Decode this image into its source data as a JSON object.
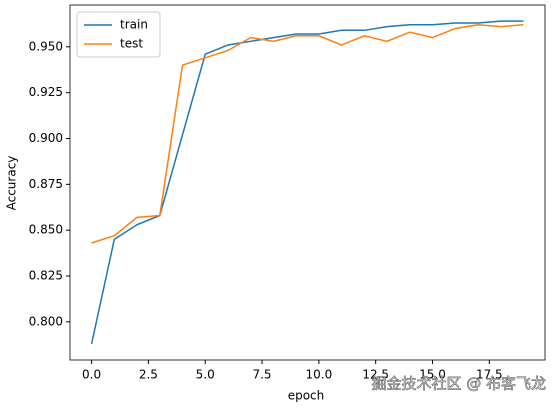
{
  "chart_data": {
    "type": "line",
    "xlabel": "epoch",
    "ylabel": "Accuracy",
    "x": [
      0,
      1,
      2,
      3,
      4,
      5,
      6,
      7,
      8,
      9,
      10,
      11,
      12,
      13,
      14,
      15,
      16,
      17,
      18,
      19
    ],
    "series": [
      {
        "name": "train",
        "color": "#1f77b4",
        "values": [
          0.788,
          0.845,
          0.853,
          0.858,
          0.902,
          0.946,
          0.951,
          0.953,
          0.955,
          0.957,
          0.957,
          0.959,
          0.959,
          0.961,
          0.962,
          0.962,
          0.963,
          0.963,
          0.964,
          0.964
        ]
      },
      {
        "name": "test",
        "color": "#ff7f0e",
        "values": [
          0.843,
          0.847,
          0.857,
          0.858,
          0.94,
          0.944,
          0.948,
          0.955,
          0.953,
          0.956,
          0.956,
          0.951,
          0.956,
          0.953,
          0.958,
          0.955,
          0.96,
          0.962,
          0.961,
          0.962
        ]
      }
    ],
    "xlim": [
      -0.95,
      19.95
    ],
    "xticks": [
      {
        "value": 0,
        "label": "0.0"
      },
      {
        "value": 2.5,
        "label": "2.5"
      },
      {
        "value": 5,
        "label": "5.0"
      },
      {
        "value": 7.5,
        "label": "7.5"
      },
      {
        "value": 10,
        "label": "10.0"
      },
      {
        "value": 12.5,
        "label": "12.5"
      },
      {
        "value": 15,
        "label": "15.0"
      },
      {
        "value": 17.5,
        "label": "17.5"
      }
    ],
    "ylim": [
      0.7792,
      0.9728
    ],
    "yticks": [
      {
        "value": 0.8,
        "label": "0.800"
      },
      {
        "value": 0.825,
        "label": "0.825"
      },
      {
        "value": 0.85,
        "label": "0.850"
      },
      {
        "value": 0.875,
        "label": "0.875"
      },
      {
        "value": 0.9,
        "label": "0.900"
      },
      {
        "value": 0.925,
        "label": "0.925"
      },
      {
        "value": 0.95,
        "label": "0.950"
      }
    ],
    "legend": "upper left",
    "grid": false
  },
  "watermark": "掘金技术社区 @ 布客飞龙"
}
